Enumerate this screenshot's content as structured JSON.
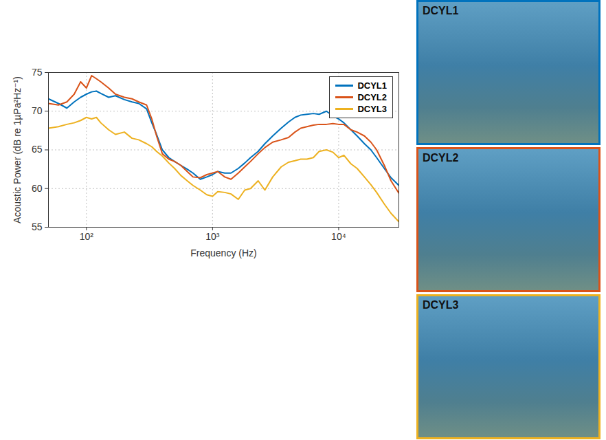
{
  "chart_data": {
    "type": "line",
    "x_label": "Frequency (Hz)",
    "y_label": "Acoustic Power (dB re 1µPa²Hz⁻¹)",
    "log": "x",
    "grid": true,
    "legend": "upper right",
    "xlim": [
      50,
      30000
    ],
    "xticks": [
      {
        "value": 100,
        "label": "10²"
      },
      {
        "value": 1000,
        "label": "10³"
      },
      {
        "value": 10000,
        "label": "10⁴"
      }
    ],
    "ylim": [
      55,
      75
    ],
    "yticks": [
      55,
      60,
      65,
      70,
      75
    ],
    "x": [
      50,
      60,
      70,
      80,
      90,
      100,
      110,
      120,
      130,
      150,
      170,
      200,
      230,
      260,
      300,
      330,
      360,
      400,
      450,
      500,
      560,
      630,
      700,
      800,
      900,
      1000,
      1100,
      1250,
      1400,
      1600,
      1800,
      2000,
      2300,
      2600,
      3000,
      3500,
      4000,
      4500,
      5000,
      5600,
      6300,
      7000,
      8000,
      9000,
      10000,
      11000,
      12500,
      14000,
      16000,
      18000,
      20000,
      23000,
      26000,
      30000
    ],
    "series": [
      {
        "name": "DCYL1",
        "color": "#0072BD",
        "values": [
          71.6,
          71.0,
          70.4,
          71.2,
          71.8,
          72.2,
          72.5,
          72.6,
          72.3,
          71.8,
          72.0,
          71.5,
          71.2,
          71.0,
          70.3,
          68.5,
          67.0,
          65.0,
          64.0,
          63.5,
          63.0,
          62.5,
          62.0,
          61.2,
          61.5,
          61.8,
          62.2,
          62.0,
          62.0,
          62.6,
          63.3,
          64.0,
          64.8,
          65.8,
          66.8,
          67.8,
          68.6,
          69.2,
          69.5,
          69.6,
          69.7,
          69.6,
          70.0,
          69.4,
          69.0,
          68.5,
          67.6,
          66.8,
          65.8,
          65.0,
          64.0,
          62.6,
          61.4,
          60.4
        ]
      },
      {
        "name": "DCYL2",
        "color": "#D95319",
        "values": [
          71.0,
          70.8,
          71.2,
          72.2,
          73.8,
          73.0,
          74.6,
          74.2,
          73.8,
          73.0,
          72.2,
          71.8,
          71.6,
          71.2,
          70.8,
          69.0,
          66.8,
          64.5,
          63.8,
          63.5,
          63.0,
          62.2,
          61.5,
          61.4,
          61.8,
          62.0,
          62.2,
          61.5,
          61.2,
          62.0,
          62.8,
          63.5,
          64.5,
          65.3,
          66.0,
          66.3,
          66.6,
          67.3,
          67.8,
          68.0,
          68.2,
          68.3,
          68.3,
          68.4,
          68.3,
          68.3,
          67.6,
          67.3,
          66.8,
          66.0,
          65.0,
          63.0,
          61.0,
          59.4
        ]
      },
      {
        "name": "DCYL3",
        "color": "#EDB120",
        "values": [
          67.8,
          68.0,
          68.3,
          68.5,
          68.8,
          69.2,
          69.0,
          69.2,
          68.5,
          67.6,
          67.0,
          67.3,
          66.5,
          66.3,
          65.8,
          65.4,
          64.8,
          64.2,
          63.3,
          62.6,
          61.7,
          61.0,
          60.4,
          59.8,
          59.2,
          59.0,
          59.6,
          59.5,
          59.3,
          58.6,
          59.8,
          60.0,
          61.0,
          59.8,
          61.5,
          62.8,
          63.4,
          63.6,
          63.8,
          63.8,
          64.0,
          64.8,
          65.0,
          64.7,
          64.0,
          64.3,
          63.2,
          62.6,
          61.5,
          60.5,
          59.5,
          58.0,
          56.8,
          55.7
        ]
      }
    ]
  },
  "photos": [
    "DCYL1",
    "DCYL2",
    "DCYL3"
  ]
}
